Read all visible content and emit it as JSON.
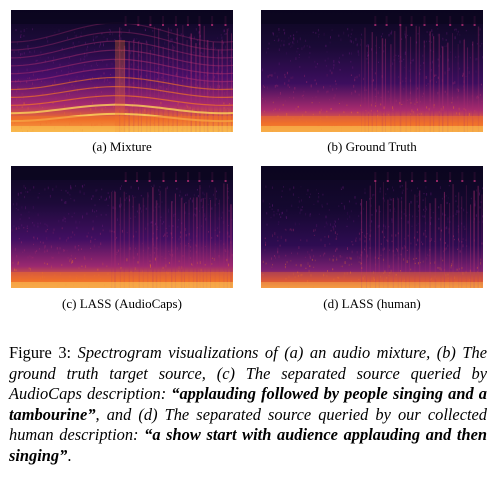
{
  "figure": {
    "panels": [
      {
        "id": "a",
        "caption": "(a) Mixture",
        "variant": "mixture"
      },
      {
        "id": "b",
        "caption": "(b) Ground Truth",
        "variant": "truth"
      },
      {
        "id": "c",
        "caption": "(c) LASS (AudioCaps)",
        "variant": "audiocaps"
      },
      {
        "id": "d",
        "caption": "(d) LASS (human)",
        "variant": "human"
      }
    ],
    "colors": {
      "dark": "#0c0620",
      "purple": "#4a0f6a",
      "magenta": "#a82b6e",
      "orange": "#f0702a",
      "yellow": "#fcd25a"
    }
  },
  "caption": {
    "label": "Figure 3:",
    "part1": "Spectrogram visualizations of (a) an audio mixture, (b) The ground truth target source, (c) The separated source queried by AudioCaps description:",
    "quote1": "“applauding followed by people singing and a tambourine”",
    "part2": ", and (d) The separated source queried by our collected human description:",
    "quote2": "“a show start with audience applauding and then singing”",
    "end": "."
  }
}
